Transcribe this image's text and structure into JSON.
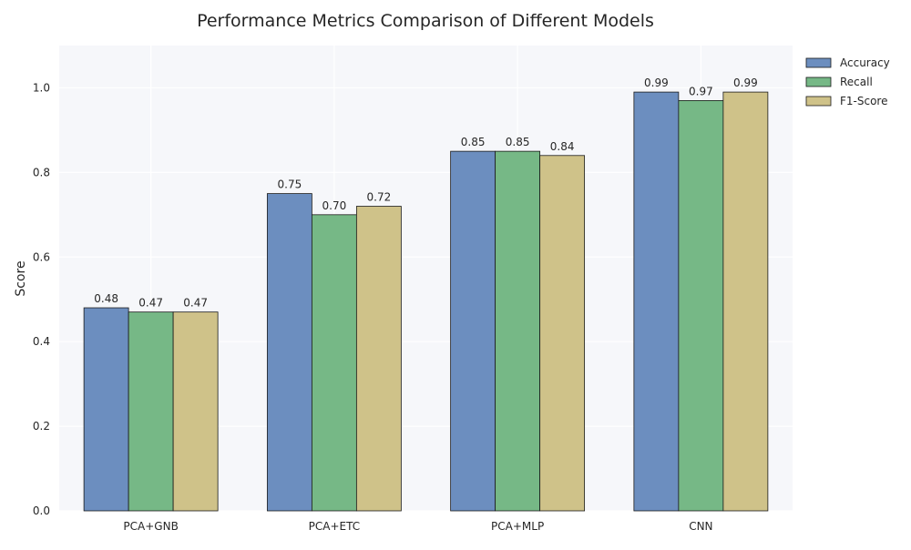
{
  "chart_data": {
    "type": "bar",
    "title": "Performance Metrics Comparison of Different Models",
    "xlabel": "",
    "ylabel": "Score",
    "categories": [
      "PCA+GNB",
      "PCA+ETC",
      "PCA+MLP",
      "CNN"
    ],
    "series": [
      {
        "name": "Accuracy",
        "values": [
          0.48,
          0.75,
          0.85,
          0.99
        ],
        "labels": [
          "0.48",
          "0.75",
          "0.85",
          "0.99"
        ],
        "color": "#6c8ebf"
      },
      {
        "name": "Recall",
        "values": [
          0.47,
          0.7,
          0.85,
          0.97
        ],
        "labels": [
          "0.47",
          "0.70",
          "0.85",
          "0.97"
        ],
        "color": "#76b886"
      },
      {
        "name": "F1-Score",
        "values": [
          0.47,
          0.72,
          0.84,
          0.99
        ],
        "labels": [
          "0.47",
          "0.72",
          "0.84",
          "0.99"
        ],
        "color": "#cfc289"
      }
    ],
    "ylim": [
      0,
      1.1
    ],
    "yticks": [
      "0.0",
      "0.2",
      "0.4",
      "0.6",
      "0.8",
      "1.0"
    ],
    "grid": true,
    "legend_position": "top-right"
  },
  "colors": {
    "plot_background": "#f6f7fa",
    "grid": "#ffffff",
    "bar_edge": "#1a1a1a"
  }
}
